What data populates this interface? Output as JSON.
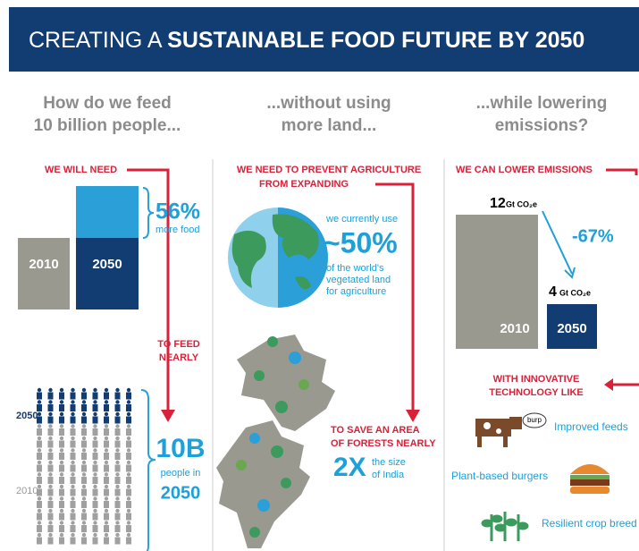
{
  "header": {
    "title_light": "CREATING A",
    "title_bold": "SUSTAINABLE FOOD FUTURE BY 2050"
  },
  "columns": [
    {
      "heading": [
        "How do we feed",
        "10 billion people..."
      ],
      "callout": "WE WILL NEED",
      "bar_labels": [
        "2010",
        "2050"
      ],
      "increase": "56%",
      "increase_note": "more food",
      "callout2": [
        "TO FEED",
        "NEARLY"
      ],
      "people_years": [
        "2050",
        "2010"
      ],
      "total": "10B",
      "total_note": [
        "people in",
        "2050"
      ]
    },
    {
      "heading": [
        "...without using",
        "more land..."
      ],
      "callout": [
        "WE NEED TO PREVENT AGRICULTURE",
        "FROM EXPANDING"
      ],
      "share_intro": "we currently use",
      "share": "~50%",
      "share_note": [
        "of the world's",
        "vegetated land",
        "for agriculture"
      ],
      "callout2": [
        "TO SAVE AN AREA",
        "OF FORESTS NEARLY"
      ],
      "factor": "2X",
      "factor_note": [
        "the size",
        "of India"
      ]
    },
    {
      "heading": [
        "...while lowering",
        "emissions?"
      ],
      "callout": "WE CAN LOWER EMISSIONS",
      "emission_2010": "12",
      "emission_2050": "4",
      "unit": "Gt CO₂e",
      "bar_labels": [
        "2010",
        "2050"
      ],
      "change": "-67%",
      "callout2": [
        "WITH INNOVATIVE",
        "TECHNOLOGY LIKE"
      ],
      "technologies": [
        "Improved feeds",
        "Plant-based burgers",
        "Resilient crop breed"
      ],
      "burp": "burp"
    }
  ]
}
